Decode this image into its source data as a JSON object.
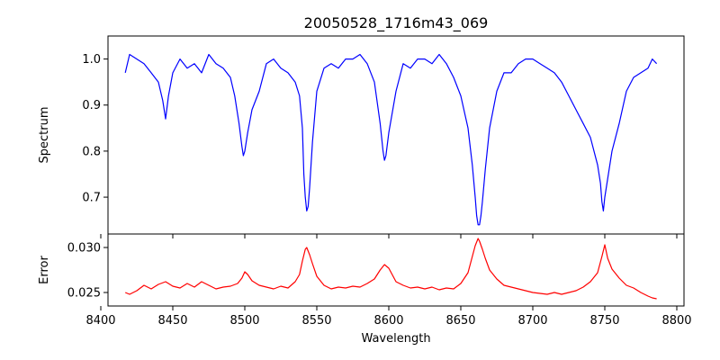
{
  "chart_data": [
    {
      "type": "line",
      "title": "20050528_1716m43_069",
      "xlabel": "",
      "ylabel": "Spectrum",
      "xlim": [
        8405,
        8805
      ],
      "ylim": [
        0.62,
        1.05
      ],
      "xticks": [
        8400,
        8450,
        8500,
        8550,
        8600,
        8650,
        8700,
        8750,
        8800
      ],
      "yticks": [
        0.7,
        0.8,
        0.9,
        1.0
      ],
      "ytick_labels": [
        "0.7",
        "0.8",
        "0.9",
        "1.0"
      ],
      "series": [
        {
          "color": "#0000ff",
          "x": [
            8417,
            8420,
            8425,
            8430,
            8435,
            8440,
            8443,
            8445,
            8447,
            8450,
            8455,
            8460,
            8465,
            8470,
            8475,
            8480,
            8485,
            8490,
            8493,
            8496,
            8498,
            8499,
            8500,
            8502,
            8505,
            8510,
            8515,
            8520,
            8525,
            8530,
            8535,
            8538,
            8540,
            8541,
            8542,
            8543,
            8544,
            8545,
            8547,
            8550,
            8555,
            8560,
            8565,
            8570,
            8575,
            8580,
            8585,
            8590,
            8594,
            8596,
            8597,
            8598,
            8600,
            8605,
            8610,
            8615,
            8620,
            8625,
            8630,
            8635,
            8640,
            8645,
            8650,
            8655,
            8658,
            8660,
            8661,
            8662,
            8663,
            8664,
            8665,
            8667,
            8670,
            8675,
            8680,
            8685,
            8690,
            8695,
            8700,
            8705,
            8710,
            8715,
            8720,
            8725,
            8730,
            8735,
            8740,
            8745,
            8747,
            8748,
            8749,
            8750,
            8752,
            8755,
            8760,
            8765,
            8770,
            8775,
            8780,
            8783,
            8786
          ],
          "y": [
            0.97,
            1.01,
            1.0,
            0.99,
            0.97,
            0.95,
            0.91,
            0.87,
            0.92,
            0.97,
            1.0,
            0.98,
            0.99,
            0.97,
            1.01,
            0.99,
            0.98,
            0.96,
            0.92,
            0.86,
            0.81,
            0.79,
            0.8,
            0.84,
            0.89,
            0.93,
            0.99,
            1.0,
            0.98,
            0.97,
            0.95,
            0.92,
            0.85,
            0.75,
            0.7,
            0.67,
            0.68,
            0.72,
            0.82,
            0.93,
            0.98,
            0.99,
            0.98,
            1.0,
            1.0,
            1.01,
            0.99,
            0.95,
            0.86,
            0.8,
            0.78,
            0.79,
            0.84,
            0.93,
            0.99,
            0.98,
            1.0,
            1.0,
            0.99,
            1.01,
            0.99,
            0.96,
            0.92,
            0.85,
            0.77,
            0.7,
            0.66,
            0.64,
            0.64,
            0.66,
            0.69,
            0.76,
            0.85,
            0.93,
            0.97,
            0.97,
            0.99,
            1.0,
            1.0,
            0.99,
            0.98,
            0.97,
            0.95,
            0.92,
            0.89,
            0.86,
            0.83,
            0.77,
            0.73,
            0.69,
            0.67,
            0.7,
            0.74,
            0.8,
            0.86,
            0.93,
            0.96,
            0.97,
            0.98,
            1.0,
            0.99
          ]
        }
      ]
    },
    {
      "type": "line",
      "title": "",
      "xlabel": "Wavelength",
      "ylabel": "Error",
      "xlim": [
        8405,
        8805
      ],
      "ylim": [
        0.0235,
        0.0315
      ],
      "xticks": [
        8400,
        8450,
        8500,
        8550,
        8600,
        8650,
        8700,
        8750,
        8800
      ],
      "yticks": [
        0.025,
        0.03
      ],
      "ytick_labels": [
        "0.025",
        "0.030"
      ],
      "series": [
        {
          "color": "#ff0000",
          "x": [
            8417,
            8420,
            8425,
            8430,
            8435,
            8440,
            8445,
            8450,
            8455,
            8460,
            8465,
            8470,
            8475,
            8480,
            8485,
            8490,
            8495,
            8498,
            8500,
            8502,
            8505,
            8510,
            8515,
            8520,
            8525,
            8530,
            8535,
            8538,
            8540,
            8542,
            8543,
            8545,
            8547,
            8550,
            8555,
            8560,
            8565,
            8570,
            8575,
            8580,
            8585,
            8590,
            8594,
            8597,
            8600,
            8603,
            8605,
            8610,
            8615,
            8620,
            8625,
            8630,
            8635,
            8640,
            8645,
            8650,
            8655,
            8658,
            8660,
            8662,
            8663,
            8665,
            8667,
            8670,
            8675,
            8680,
            8685,
            8690,
            8695,
            8700,
            8705,
            8710,
            8715,
            8720,
            8725,
            8730,
            8735,
            8740,
            8745,
            8748,
            8750,
            8752,
            8755,
            8760,
            8765,
            8770,
            8775,
            8780,
            8783,
            8786
          ],
          "y": [
            0.025,
            0.0248,
            0.0252,
            0.0258,
            0.0254,
            0.0259,
            0.0262,
            0.0257,
            0.0255,
            0.026,
            0.0256,
            0.0262,
            0.0258,
            0.0254,
            0.0256,
            0.0257,
            0.026,
            0.0266,
            0.0273,
            0.027,
            0.0263,
            0.0258,
            0.0256,
            0.0254,
            0.0257,
            0.0255,
            0.0262,
            0.027,
            0.0285,
            0.0298,
            0.03,
            0.0292,
            0.0282,
            0.0268,
            0.0258,
            0.0254,
            0.0256,
            0.0255,
            0.0257,
            0.0256,
            0.026,
            0.0265,
            0.0275,
            0.0281,
            0.0277,
            0.0268,
            0.0262,
            0.0258,
            0.0255,
            0.0256,
            0.0254,
            0.0256,
            0.0253,
            0.0255,
            0.0254,
            0.026,
            0.0272,
            0.029,
            0.0302,
            0.031,
            0.0307,
            0.0298,
            0.0288,
            0.0275,
            0.0265,
            0.0258,
            0.0256,
            0.0254,
            0.0252,
            0.025,
            0.0249,
            0.0248,
            0.025,
            0.0248,
            0.025,
            0.0252,
            0.0256,
            0.0262,
            0.0272,
            0.029,
            0.0303,
            0.0288,
            0.0276,
            0.0266,
            0.0258,
            0.0255,
            0.025,
            0.0246,
            0.0244,
            0.0243
          ]
        }
      ]
    }
  ]
}
